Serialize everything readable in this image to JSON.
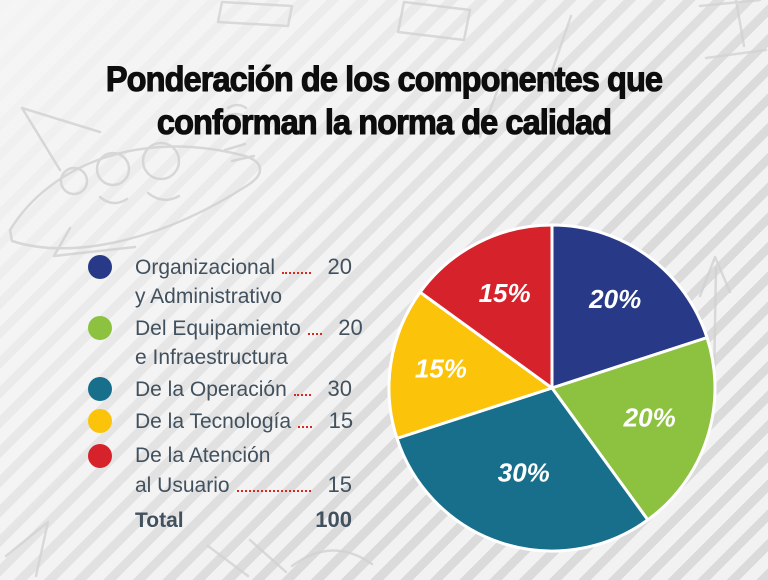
{
  "header": {
    "title_lines": [
      "Ponderación de los componentes que",
      "conforman la norma de calidad"
    ]
  },
  "legend": {
    "text_color": "#42515e",
    "leader_color": "#d8281f",
    "items": [
      {
        "swatch": "#283a87",
        "lines": [
          "Organizacional",
          "y Administrativo"
        ],
        "value": "20",
        "value_line": 0,
        "leader": true,
        "bold": false
      },
      {
        "swatch": "#8cc23f",
        "lines": [
          "Del Equipamiento",
          "e Infraestructura"
        ],
        "value": "20",
        "value_line": 0,
        "leader": true,
        "bold": false
      },
      {
        "swatch": "#186f8c",
        "lines": [
          "De la Operación"
        ],
        "value": "30",
        "value_line": 0,
        "leader": true,
        "bold": false
      },
      {
        "swatch": "#fcc30b",
        "lines": [
          "De la Tecnología"
        ],
        "value": "15",
        "value_line": 0,
        "leader": true,
        "bold": false
      },
      {
        "swatch": "#d6222b",
        "lines": [
          "De la Atención",
          "al Usuario"
        ],
        "value": "15",
        "value_line": 1,
        "leader": true,
        "bold": false
      },
      {
        "swatch": null,
        "lines": [
          "Total"
        ],
        "value": "100",
        "value_line": 0,
        "leader": false,
        "bold": true
      }
    ]
  },
  "chart_data": {
    "type": "pie",
    "title": "Ponderación de los componentes que conforman la norma de calidad",
    "labels": [
      "Organizacional y Administrativo",
      "Del Equipamiento e Infraestructura",
      "De la Operación",
      "De la Tecnología",
      "De la Atención al Usuario"
    ],
    "values": [
      20,
      20,
      30,
      15,
      15
    ],
    "total": 100,
    "slice_labels": [
      "20%",
      "20%",
      "30%",
      "15%",
      "15%"
    ],
    "colors": [
      "#283a87",
      "#8cc23f",
      "#186f8c",
      "#fcc30b",
      "#d6222b"
    ],
    "separator_color": "#ffffff",
    "label_color": "#ffffff",
    "start_angle_deg": 0,
    "direction": "clockwise",
    "legend_position": "left"
  }
}
